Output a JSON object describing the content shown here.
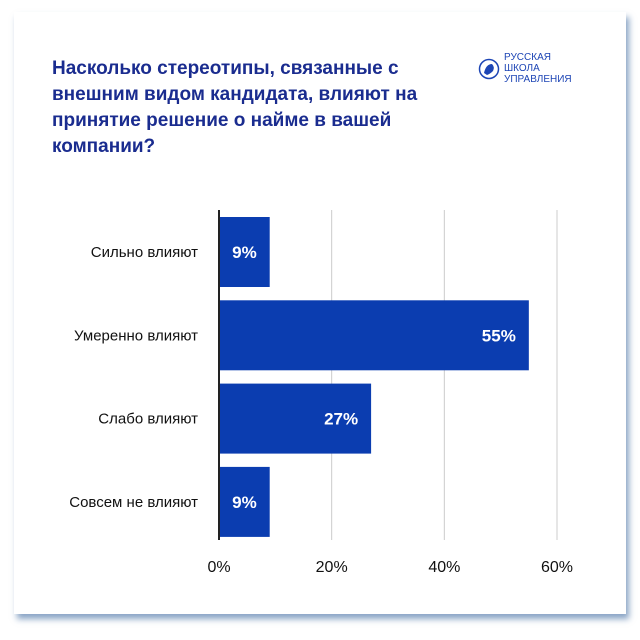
{
  "header": {
    "title": "Насколько стереотипы, связанные с внешним видом кандидата, влияют на принятие решение о найме в вашей компании?",
    "logo_text": "РУССКАЯ\nШКОЛА\nУПРАВЛЕНИЯ"
  },
  "colors": {
    "bar": "#0b3db0",
    "title": "#1a2c8f",
    "grid": "#cccccc"
  },
  "chart_data": {
    "type": "bar",
    "orientation": "horizontal",
    "categories": [
      "Сильно влияют",
      "Умеренно влияют",
      "Слабо влияют",
      "Совсем не влияют"
    ],
    "values": [
      9,
      55,
      27,
      9
    ],
    "value_labels": [
      "9%",
      "55%",
      "27%",
      "9%"
    ],
    "xlim": [
      0,
      60
    ],
    "xticks": [
      0,
      20,
      40,
      60
    ],
    "xtick_labels": [
      "0%",
      "20%",
      "40%",
      "60%"
    ],
    "grid": true
  }
}
